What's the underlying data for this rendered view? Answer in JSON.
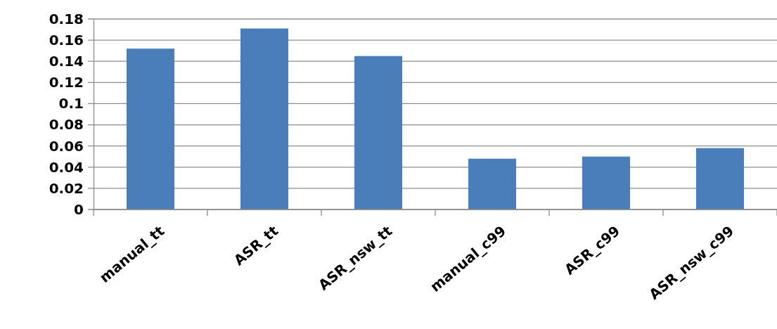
{
  "chart_data": {
    "type": "bar",
    "categories": [
      "manual_tt",
      "ASR_tt",
      "ASR_nsw_tt",
      "manual_c99",
      "ASR_c99",
      "ASR_nsw_c99"
    ],
    "values": [
      0.152,
      0.171,
      0.145,
      0.048,
      0.05,
      0.058
    ],
    "color": "#4a7ebb",
    "ylim": [
      0,
      0.18
    ],
    "yticks": [
      0,
      0.02,
      0.04,
      0.06,
      0.08,
      0.1,
      0.12,
      0.14,
      0.16,
      0.18
    ],
    "grid": "y"
  }
}
